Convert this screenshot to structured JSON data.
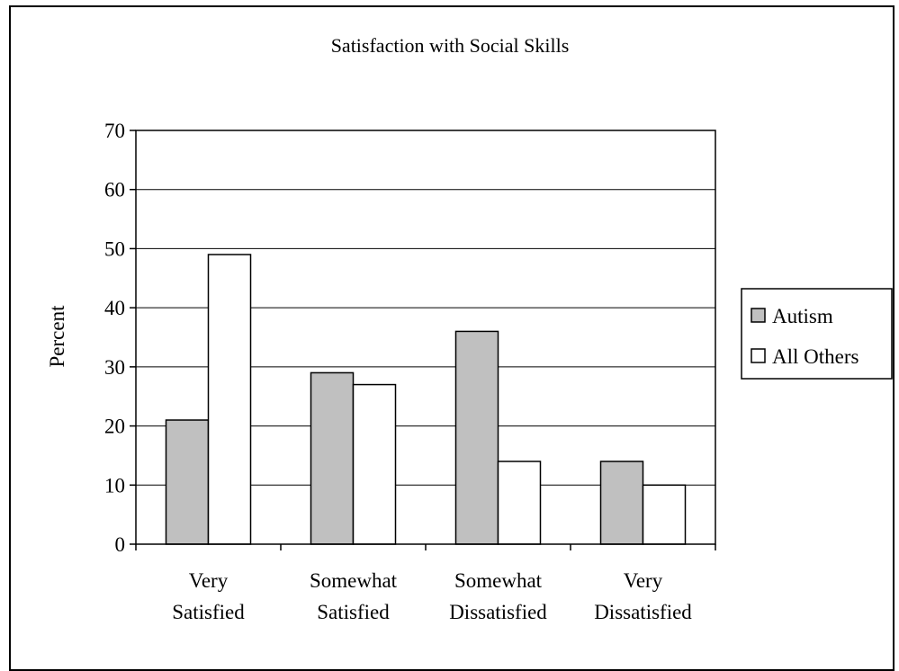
{
  "chart_data": {
    "type": "bar",
    "title": "Satisfaction with Social Skills",
    "ylabel": "Percent",
    "xlabel": "",
    "ylim": [
      0,
      70
    ],
    "yticks": [
      0,
      10,
      20,
      30,
      40,
      50,
      60,
      70
    ],
    "grid": true,
    "legend_position": "right",
    "categories": [
      [
        "Very",
        "Satisfied"
      ],
      [
        "Somewhat",
        "Satisfied"
      ],
      [
        "Somewhat",
        "Dissatisfied"
      ],
      [
        "Very",
        "Dissatisfied"
      ]
    ],
    "series": [
      {
        "name": "Autism",
        "color": "#c0c0c0",
        "values": [
          21,
          29,
          36,
          14
        ]
      },
      {
        "name": "All Others",
        "color": "#ffffff",
        "values": [
          49,
          27,
          14,
          10
        ]
      }
    ]
  }
}
